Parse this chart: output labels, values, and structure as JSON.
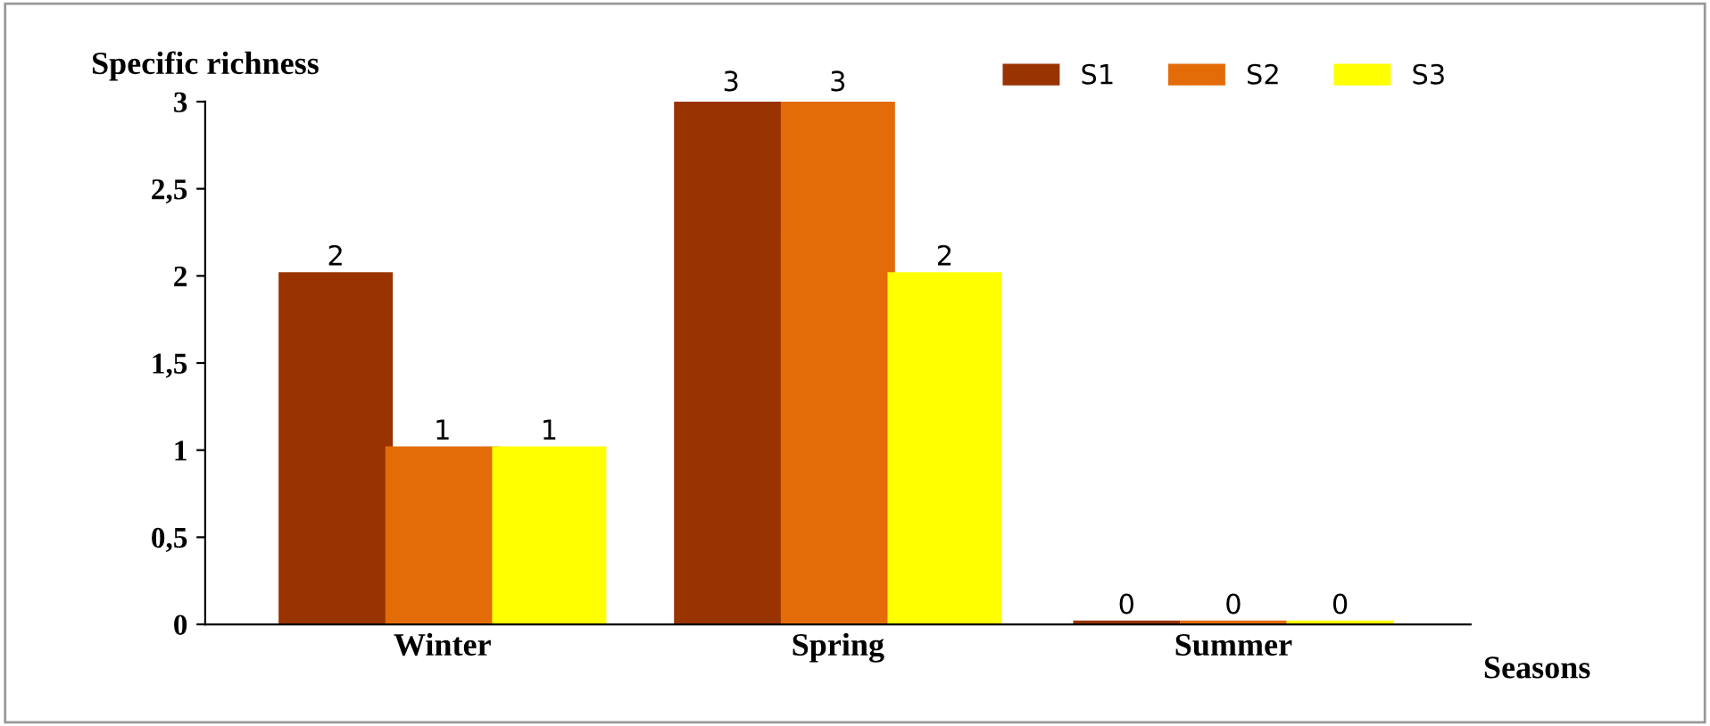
{
  "chart_data": {
    "type": "bar",
    "ylabel": "Specific richness",
    "xlabel": "Seasons",
    "categories": [
      "Winter",
      "Spring",
      "Summer"
    ],
    "series": [
      {
        "name": "S1",
        "color": "#993300",
        "values": [
          2,
          3,
          0
        ]
      },
      {
        "name": "S2",
        "color": "#e36c09",
        "values": [
          1,
          3,
          0
        ]
      },
      {
        "name": "S3",
        "color": "#ffff00",
        "values": [
          1,
          2,
          0
        ]
      }
    ],
    "ylim": [
      0,
      3
    ],
    "yticks": [
      0,
      {
        "value": 0.5,
        "label": "0,5"
      },
      1,
      {
        "value": 1.5,
        "label": "1,5"
      },
      2,
      {
        "value": 2.5,
        "label": "2,5"
      },
      3
    ],
    "data_labels": true,
    "legend": "top right",
    "grid": false
  }
}
